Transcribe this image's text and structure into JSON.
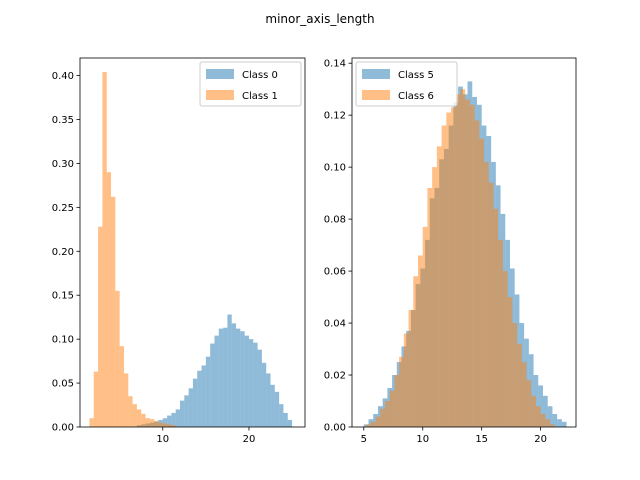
{
  "figure": {
    "title": "minor_axis_length"
  },
  "chart_data": [
    {
      "type": "bar",
      "subtype": "overlapping-histogram",
      "title": "",
      "xlabel": "",
      "ylabel": "",
      "xlim": [
        0.4,
        26.5
      ],
      "ylim": [
        0,
        0.42
      ],
      "xticks": [
        10,
        20
      ],
      "yticks": [
        0.0,
        0.05,
        0.1,
        0.15,
        0.2,
        0.25,
        0.3,
        0.35,
        0.4
      ],
      "xtick_labels": [
        "10",
        "20"
      ],
      "ytick_labels": [
        "0.00",
        "0.05",
        "0.10",
        "0.15",
        "0.20",
        "0.25",
        "0.30",
        "0.35",
        "0.40"
      ],
      "legend_position": "upper right",
      "series": [
        {
          "name": "Class 0",
          "color": "#1f77b4",
          "bin_edges": [
            7.0,
            7.5,
            8.0,
            8.5,
            9.0,
            9.5,
            10.0,
            10.5,
            11.0,
            11.5,
            12.0,
            12.5,
            13.0,
            13.5,
            14.0,
            14.5,
            15.0,
            15.5,
            16.0,
            16.5,
            17.0,
            17.5,
            18.0,
            18.5,
            19.0,
            19.5,
            20.0,
            20.5,
            21.0,
            21.5,
            22.0,
            22.5,
            23.0,
            23.5,
            24.0,
            24.5,
            25.0
          ],
          "values": [
            0.002,
            0.003,
            0.004,
            0.005,
            0.006,
            0.008,
            0.01,
            0.013,
            0.016,
            0.02,
            0.03,
            0.036,
            0.044,
            0.055,
            0.064,
            0.07,
            0.08,
            0.095,
            0.104,
            0.112,
            0.113,
            0.128,
            0.118,
            0.112,
            0.109,
            0.104,
            0.1,
            0.096,
            0.088,
            0.073,
            0.061,
            0.048,
            0.04,
            0.026,
            0.016,
            0.008
          ]
        },
        {
          "name": "Class 1",
          "color": "#ff7f0e",
          "bin_edges": [
            1.5,
            2.0,
            2.5,
            3.0,
            3.5,
            4.0,
            4.5,
            5.0,
            5.5,
            6.0,
            6.5,
            7.0,
            7.5,
            8.0,
            8.5,
            9.0,
            9.5,
            10.0,
            10.5,
            11.0,
            11.5
          ],
          "values": [
            0.01,
            0.063,
            0.228,
            0.404,
            0.29,
            0.262,
            0.155,
            0.092,
            0.061,
            0.035,
            0.026,
            0.02,
            0.015,
            0.01,
            0.009,
            0.007,
            0.005,
            0.004,
            0.003,
            0.002
          ]
        }
      ]
    },
    {
      "type": "bar",
      "subtype": "overlapping-histogram",
      "title": "",
      "xlabel": "",
      "ylabel": "",
      "xlim": [
        4.0,
        23.0
      ],
      "ylim": [
        0,
        0.142
      ],
      "xticks": [
        5,
        10,
        15,
        20
      ],
      "yticks": [
        0.0,
        0.02,
        0.04,
        0.06,
        0.08,
        0.1,
        0.12,
        0.14
      ],
      "xtick_labels": [
        "5",
        "10",
        "15",
        "20"
      ],
      "ytick_labels": [
        "0.00",
        "0.02",
        "0.04",
        "0.06",
        "0.08",
        "0.10",
        "0.12",
        "0.14"
      ],
      "legend_position": "upper left",
      "series": [
        {
          "name": "Class 5",
          "color": "#1f77b4",
          "bin_edges": [
            5.0,
            5.4,
            5.8,
            6.2,
            6.6,
            7.0,
            7.4,
            7.8,
            8.2,
            8.6,
            9.0,
            9.4,
            9.8,
            10.2,
            10.6,
            11.0,
            11.4,
            11.8,
            12.2,
            12.6,
            13.0,
            13.4,
            13.8,
            14.2,
            14.6,
            15.0,
            15.4,
            15.8,
            16.2,
            16.6,
            17.0,
            17.4,
            17.8,
            18.2,
            18.6,
            19.0,
            19.4,
            19.8,
            20.2,
            20.6,
            21.0,
            21.4,
            21.8,
            22.2
          ],
          "values": [
            0.001,
            0.003,
            0.005,
            0.008,
            0.011,
            0.015,
            0.02,
            0.025,
            0.031,
            0.037,
            0.045,
            0.055,
            0.061,
            0.072,
            0.088,
            0.092,
            0.103,
            0.107,
            0.116,
            0.125,
            0.131,
            0.128,
            0.133,
            0.127,
            0.124,
            0.116,
            0.112,
            0.102,
            0.093,
            0.082,
            0.072,
            0.061,
            0.051,
            0.04,
            0.034,
            0.028,
            0.02,
            0.016,
            0.012,
            0.008,
            0.005,
            0.003,
            0.002
          ]
        },
        {
          "name": "Class 6",
          "color": "#ff7f0e",
          "bin_edges": [
            5.2,
            5.6,
            6.0,
            6.4,
            6.8,
            7.2,
            7.6,
            8.0,
            8.4,
            8.8,
            9.2,
            9.6,
            10.0,
            10.4,
            10.8,
            11.2,
            11.6,
            12.0,
            12.4,
            12.8,
            13.2,
            13.6,
            14.0,
            14.4,
            14.8,
            15.2,
            15.6,
            16.0,
            16.4,
            16.8,
            17.2,
            17.6,
            18.0,
            18.4,
            18.8,
            19.2,
            19.6,
            20.0,
            20.4,
            20.8,
            21.2
          ],
          "values": [
            0.001,
            0.002,
            0.004,
            0.007,
            0.01,
            0.014,
            0.02,
            0.027,
            0.036,
            0.045,
            0.058,
            0.066,
            0.077,
            0.092,
            0.1,
            0.108,
            0.116,
            0.121,
            0.123,
            0.128,
            0.13,
            0.126,
            0.124,
            0.118,
            0.111,
            0.102,
            0.094,
            0.084,
            0.072,
            0.06,
            0.05,
            0.04,
            0.032,
            0.025,
            0.018,
            0.012,
            0.008,
            0.005,
            0.003,
            0.001
          ]
        }
      ]
    }
  ]
}
